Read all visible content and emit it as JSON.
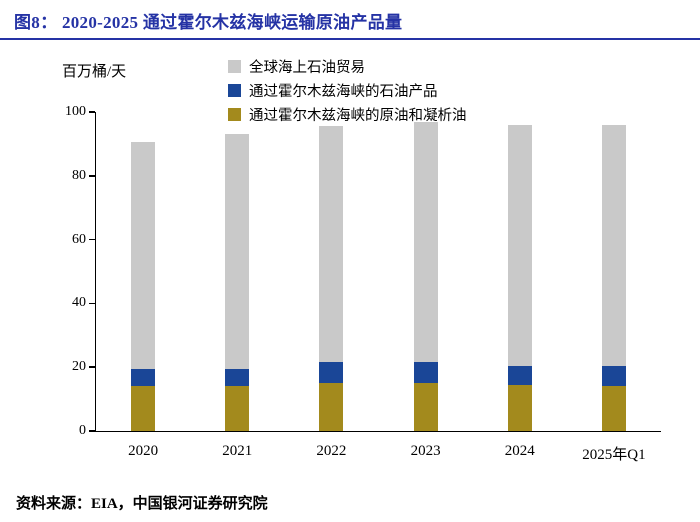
{
  "header": {
    "title": "图8： 2020-2025 通过霍尔木兹海峡运输原油产品量"
  },
  "footer": {
    "source": "资料来源：EIA，中国银河证券研究院"
  },
  "colors": {
    "accent": "#2533A5",
    "axis": "#000000",
    "background": "#ffffff"
  },
  "chart_data": {
    "type": "bar",
    "stacked": true,
    "title": "图8： 2020-2025 通过霍尔木兹海峡运输原油产品量",
    "ylabel": "百万桶/天",
    "xlabel": "",
    "ylim": [
      0,
      100
    ],
    "yticks": [
      0,
      20,
      40,
      60,
      80,
      100
    ],
    "grid": false,
    "legend_position": "top",
    "categories": [
      "2020",
      "2021",
      "2022",
      "2023",
      "2024",
      "2025年Q1"
    ],
    "series": [
      {
        "name": "通过霍尔木兹海峡的原油和凝析油",
        "color": "#A38A1D",
        "values": [
          14,
          14,
          15,
          15,
          14.5,
          14
        ]
      },
      {
        "name": "通过霍尔木兹海峡的石油产品",
        "color": "#1A4697",
        "values": [
          5.5,
          5.5,
          6.5,
          6.5,
          6,
          6.5
        ]
      },
      {
        "name": "全球海上石油贸易",
        "color": "#C9C9C9",
        "values": [
          71,
          73.5,
          74,
          75.5,
          75.5,
          75.5
        ]
      }
    ],
    "totals_note": "stacked totals: 2020=90.5, 2021=93, 2022=95.5, 2023=97, 2024=96, 2025年Q1=96"
  }
}
